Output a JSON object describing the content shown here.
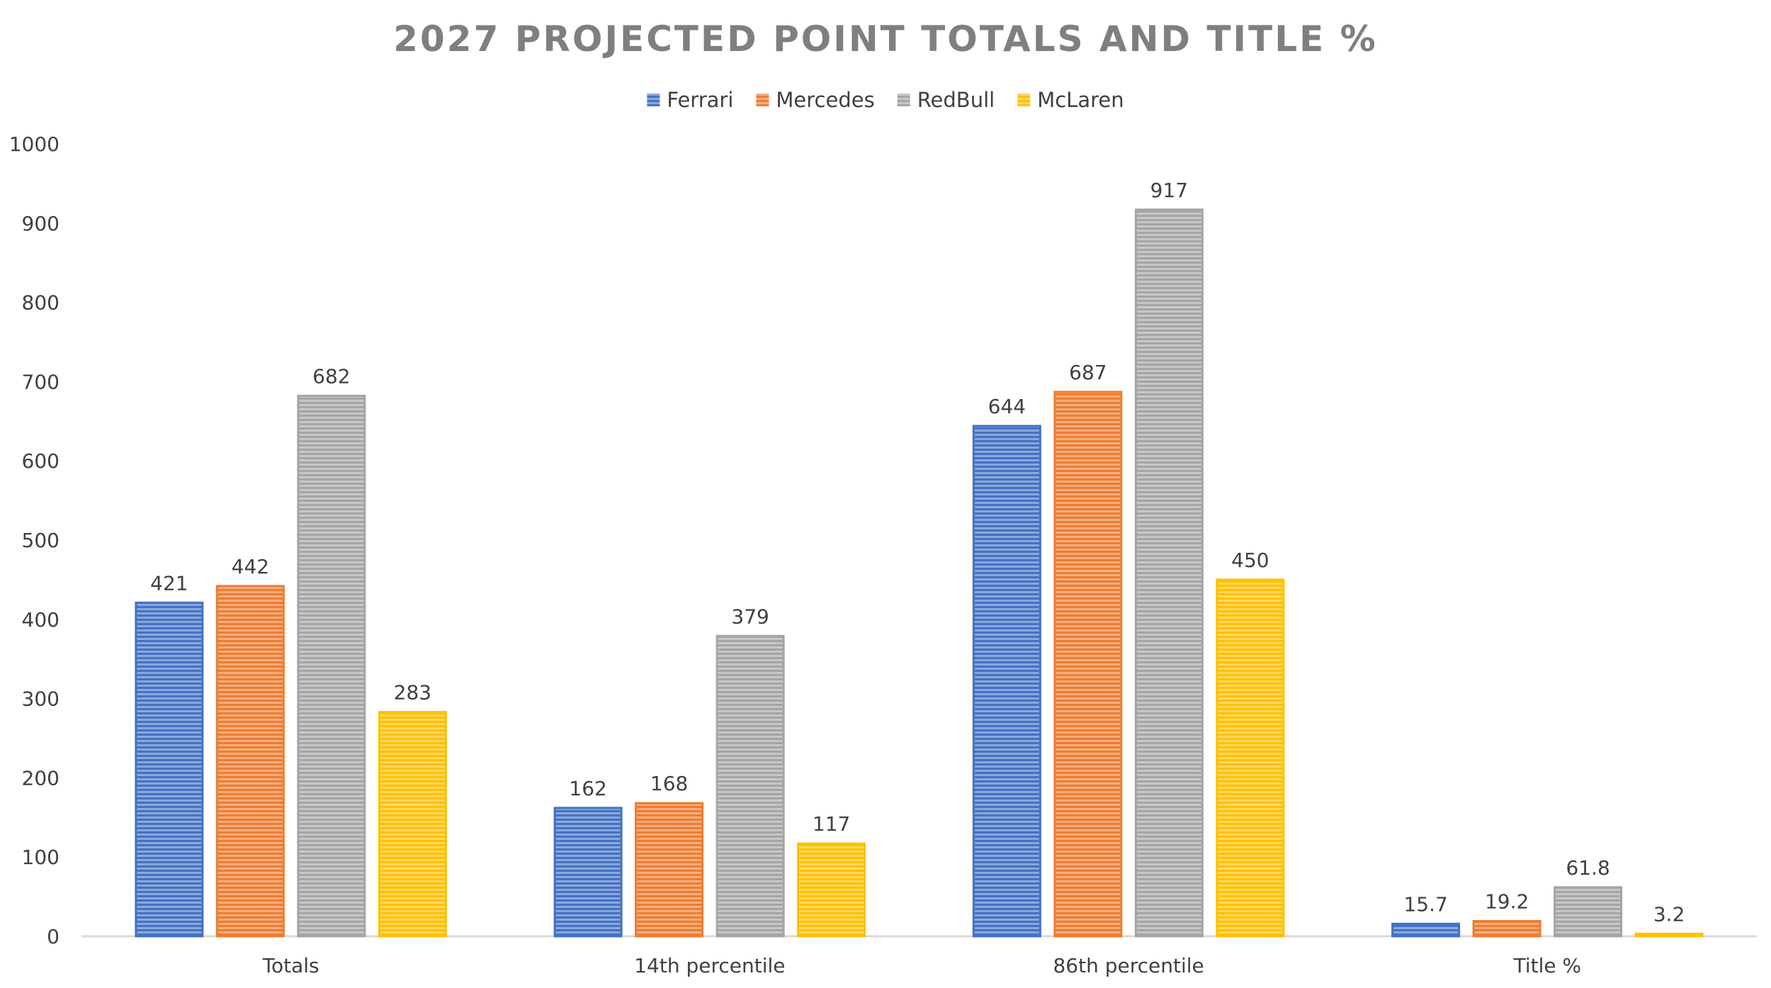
{
  "chart_data": {
    "type": "bar",
    "title": "2027 PROJECTED POINT TOTALS AND TITLE %",
    "categories": [
      "Totals",
      "14th percentile",
      "86th percentile",
      "Title %"
    ],
    "series": [
      {
        "name": "Ferrari",
        "color": "#4472c4",
        "values": [
          421,
          162,
          644,
          15.7
        ]
      },
      {
        "name": "Mercedes",
        "color": "#ed7d31",
        "values": [
          442,
          168,
          687,
          19.2
        ]
      },
      {
        "name": "RedBull",
        "color": "#a5a5a5",
        "values": [
          682,
          379,
          917,
          61.8
        ]
      },
      {
        "name": "McLaren",
        "color": "#ffc000",
        "values": [
          283,
          117,
          450,
          3.2
        ]
      }
    ],
    "ylim": [
      0,
      1000
    ],
    "yticks": [
      "0",
      "100",
      "200",
      "300",
      "400",
      "500",
      "600",
      "700",
      "800",
      "900",
      "1000"
    ],
    "data_labels": [
      [
        "421",
        "162",
        "644",
        "15.7"
      ],
      [
        "442",
        "168",
        "687",
        "19.2"
      ],
      [
        "682",
        "379",
        "917",
        "61.8"
      ],
      [
        "283",
        "117",
        "450",
        "3.2"
      ]
    ],
    "legend_position": "top",
    "grid": false
  }
}
